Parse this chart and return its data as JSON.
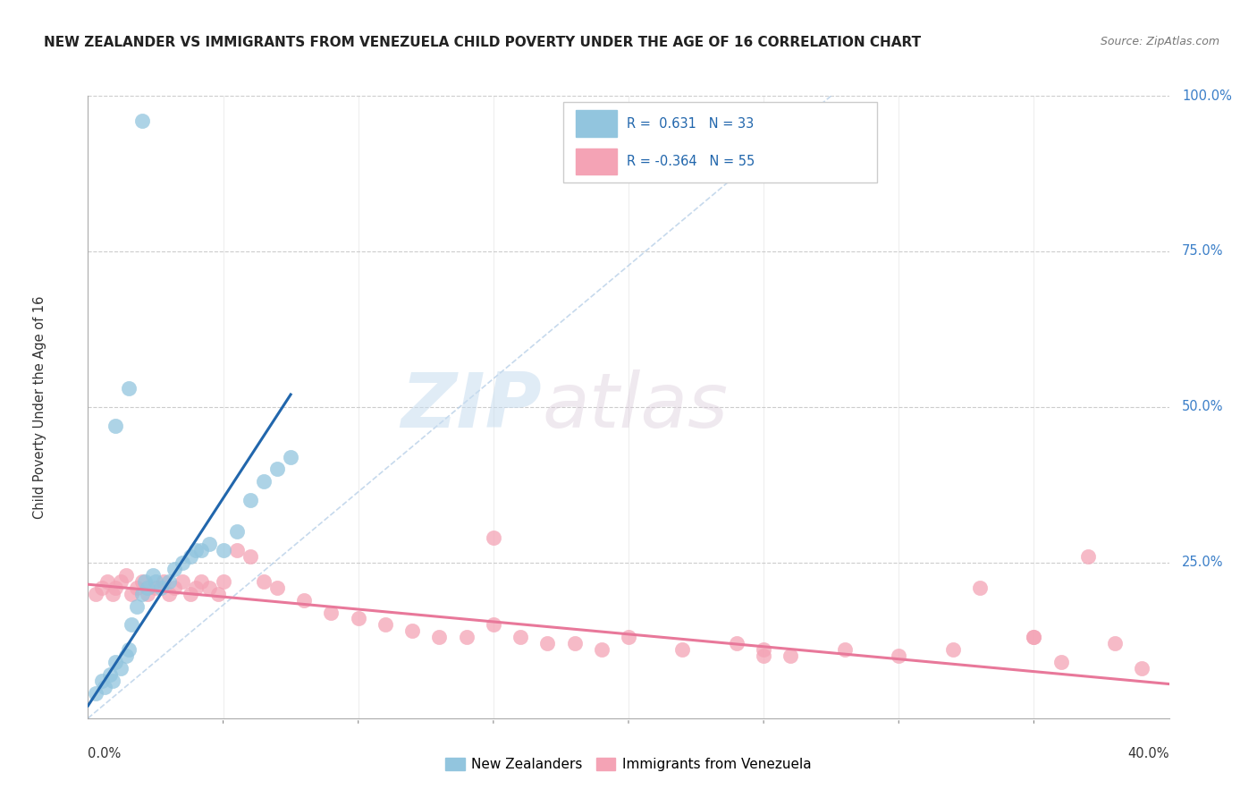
{
  "title": "NEW ZEALANDER VS IMMIGRANTS FROM VENEZUELA CHILD POVERTY UNDER THE AGE OF 16 CORRELATION CHART",
  "source": "Source: ZipAtlas.com",
  "ylabel": "Child Poverty Under the Age of 16",
  "r_blue": 0.631,
  "n_blue": 33,
  "r_pink": -0.364,
  "n_pink": 55,
  "legend_label_blue": "New Zealanders",
  "legend_label_pink": "Immigrants from Venezuela",
  "blue_color": "#92c5de",
  "pink_color": "#f4a3b5",
  "blue_line_color": "#2166ac",
  "pink_line_color": "#e8789a",
  "diag_line_color": "#b8d0e8",
  "blue_scatter_x": [
    0.003,
    0.005,
    0.006,
    0.008,
    0.009,
    0.01,
    0.012,
    0.014,
    0.015,
    0.016,
    0.018,
    0.02,
    0.021,
    0.022,
    0.024,
    0.025,
    0.027,
    0.03,
    0.032,
    0.035,
    0.038,
    0.04,
    0.042,
    0.045,
    0.05,
    0.055,
    0.06,
    0.065,
    0.07,
    0.075,
    0.01,
    0.015,
    0.02
  ],
  "blue_scatter_y": [
    0.04,
    0.06,
    0.05,
    0.07,
    0.06,
    0.09,
    0.08,
    0.1,
    0.11,
    0.15,
    0.18,
    0.2,
    0.22,
    0.21,
    0.23,
    0.22,
    0.21,
    0.22,
    0.24,
    0.25,
    0.26,
    0.27,
    0.27,
    0.28,
    0.27,
    0.3,
    0.35,
    0.38,
    0.4,
    0.42,
    0.47,
    0.53,
    0.96
  ],
  "pink_scatter_x": [
    0.003,
    0.005,
    0.007,
    0.009,
    0.01,
    0.012,
    0.014,
    0.016,
    0.018,
    0.02,
    0.022,
    0.025,
    0.028,
    0.03,
    0.032,
    0.035,
    0.038,
    0.04,
    0.042,
    0.045,
    0.048,
    0.05,
    0.055,
    0.06,
    0.065,
    0.07,
    0.08,
    0.09,
    0.1,
    0.11,
    0.12,
    0.13,
    0.14,
    0.15,
    0.16,
    0.17,
    0.18,
    0.19,
    0.2,
    0.22,
    0.24,
    0.25,
    0.26,
    0.28,
    0.3,
    0.32,
    0.33,
    0.35,
    0.36,
    0.37,
    0.38,
    0.39,
    0.15,
    0.25,
    0.35
  ],
  "pink_scatter_y": [
    0.2,
    0.21,
    0.22,
    0.2,
    0.21,
    0.22,
    0.23,
    0.2,
    0.21,
    0.22,
    0.2,
    0.21,
    0.22,
    0.2,
    0.21,
    0.22,
    0.2,
    0.21,
    0.22,
    0.21,
    0.2,
    0.22,
    0.27,
    0.26,
    0.22,
    0.21,
    0.19,
    0.17,
    0.16,
    0.15,
    0.14,
    0.13,
    0.13,
    0.15,
    0.13,
    0.12,
    0.12,
    0.11,
    0.13,
    0.11,
    0.12,
    0.11,
    0.1,
    0.11,
    0.1,
    0.11,
    0.21,
    0.13,
    0.09,
    0.26,
    0.12,
    0.08,
    0.29,
    0.1,
    0.13
  ],
  "blue_trend_x": [
    0.0,
    0.075
  ],
  "blue_trend_y": [
    0.02,
    0.52
  ],
  "pink_trend_x": [
    0.0,
    0.4
  ],
  "pink_trend_y": [
    0.215,
    0.055
  ],
  "diag_line_x": [
    0.0,
    0.275
  ],
  "diag_line_y": [
    0.0,
    1.0
  ],
  "xlim": [
    0.0,
    0.4
  ],
  "ylim": [
    0.0,
    1.0
  ],
  "yticks": [
    0.25,
    0.5,
    0.75,
    1.0
  ],
  "ytick_labels": [
    "25.0%",
    "50.0%",
    "75.0%",
    "100.0%"
  ],
  "xtick_minor": [
    0.05,
    0.1,
    0.15,
    0.2,
    0.25,
    0.3,
    0.35
  ],
  "watermark_zip": "ZIP",
  "watermark_atlas": "atlas"
}
